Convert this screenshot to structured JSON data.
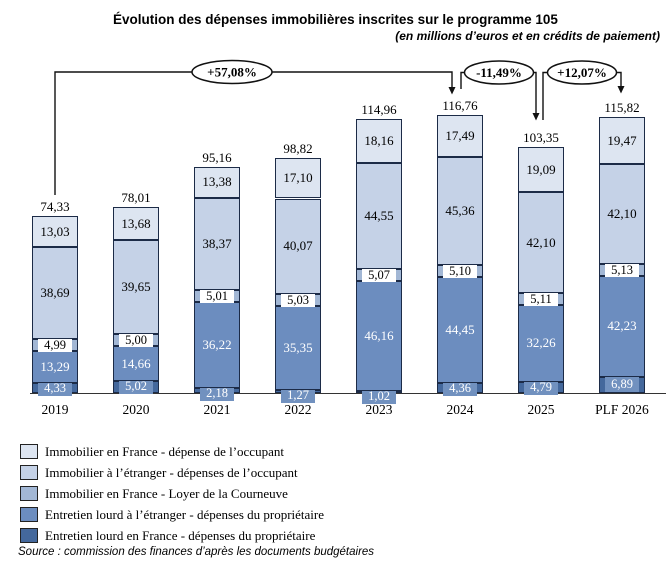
{
  "title": "Évolution des dépenses immobilières inscrites sur le programme 105",
  "subtitle": "(en millions d’euros et en crédits de paiement)",
  "source": "Source : commission des finances d’après les documents budgétaires",
  "chart_data": {
    "type": "bar",
    "subtype": "stacked-vertical",
    "unit": "millions d'euros (crédits de paiement)",
    "categories": [
      "2019",
      "2020",
      "2021",
      "2022",
      "2023",
      "2024",
      "2025",
      "PLF 2026"
    ],
    "series": [
      {
        "name": "Entretien lourd en France - dépenses du propriétaire",
        "color": "#44689c",
        "values": [
          4.33,
          5.02,
          2.18,
          1.27,
          1.02,
          4.36,
          4.79,
          6.89
        ],
        "labels": [
          "4,33",
          "5,02",
          "2,18",
          "1,27",
          "1,02",
          "4,36",
          "4,79",
          "6,89"
        ]
      },
      {
        "name": "Entretien lourd à l’étranger - dépenses du propriétaire",
        "color": "#6c8dbf",
        "values": [
          13.29,
          14.66,
          36.22,
          35.35,
          46.16,
          44.45,
          32.26,
          42.23
        ],
        "labels": [
          "13,29",
          "14,66",
          "36,22",
          "35,35",
          "46,16",
          "44,45",
          "32,26",
          "42,23"
        ]
      },
      {
        "name": "Immobilier en France - Loyer de la Courneuve",
        "color": "#a2b7d5",
        "values": [
          4.99,
          5.0,
          5.01,
          5.03,
          5.07,
          5.1,
          5.11,
          5.13
        ],
        "labels": [
          "4,99",
          "5,00",
          "5,01",
          "5,03",
          "5,07",
          "5,10",
          "5,11",
          "5,13"
        ]
      },
      {
        "name": "Immobilier à l’étranger - dépenses de l’occupant",
        "color": "#c5d2e7",
        "values": [
          38.69,
          39.65,
          38.37,
          40.07,
          44.55,
          45.36,
          42.1,
          42.1
        ],
        "labels": [
          "38,69",
          "39,65",
          "38,37",
          "40,07",
          "44,55",
          "45,36",
          "42,10",
          "42,10"
        ]
      },
      {
        "name": "Immobilier en France - dépense de l’occupant",
        "color": "#dde5f1",
        "values": [
          13.03,
          13.68,
          13.38,
          17.1,
          18.16,
          17.49,
          19.09,
          19.47
        ],
        "labels": [
          "13,03",
          "13,68",
          "13,38",
          "17,10",
          "18,16",
          "17,49",
          "19,09",
          "19,47"
        ]
      }
    ],
    "totals": {
      "values": [
        74.33,
        78.01,
        95.16,
        98.82,
        114.96,
        116.76,
        103.35,
        115.82
      ],
      "labels": [
        "74,33",
        "78,01",
        "95,16",
        "98,82",
        "114,96",
        "116,76",
        "103,35",
        "115,82"
      ]
    },
    "annotations": [
      {
        "label": "+57,08%",
        "from": "2019",
        "to": "2024"
      },
      {
        "label": "-11,49%",
        "from": "2024",
        "to": "2025"
      },
      {
        "label": "+12,07%",
        "from": "2025",
        "to": "PLF 2026"
      }
    ],
    "legend_position": "bottom-left",
    "grid": false
  },
  "legend": {
    "items": [
      {
        "label": "Immobilier en France - dépense de l’occupant",
        "color": "#dde5f1"
      },
      {
        "label": "Immobilier à l’étranger - dépenses de l’occupant",
        "color": "#c5d2e7"
      },
      {
        "label": "Immobilier en France - Loyer de la Courneuve",
        "color": "#a2b7d5"
      },
      {
        "label": "Entretien lourd à l’étranger - dépenses du propriétaire",
        "color": "#6c8dbf"
      },
      {
        "label": "Entretien lourd en France - dépenses du propriétaire",
        "color": "#44689c"
      }
    ]
  }
}
